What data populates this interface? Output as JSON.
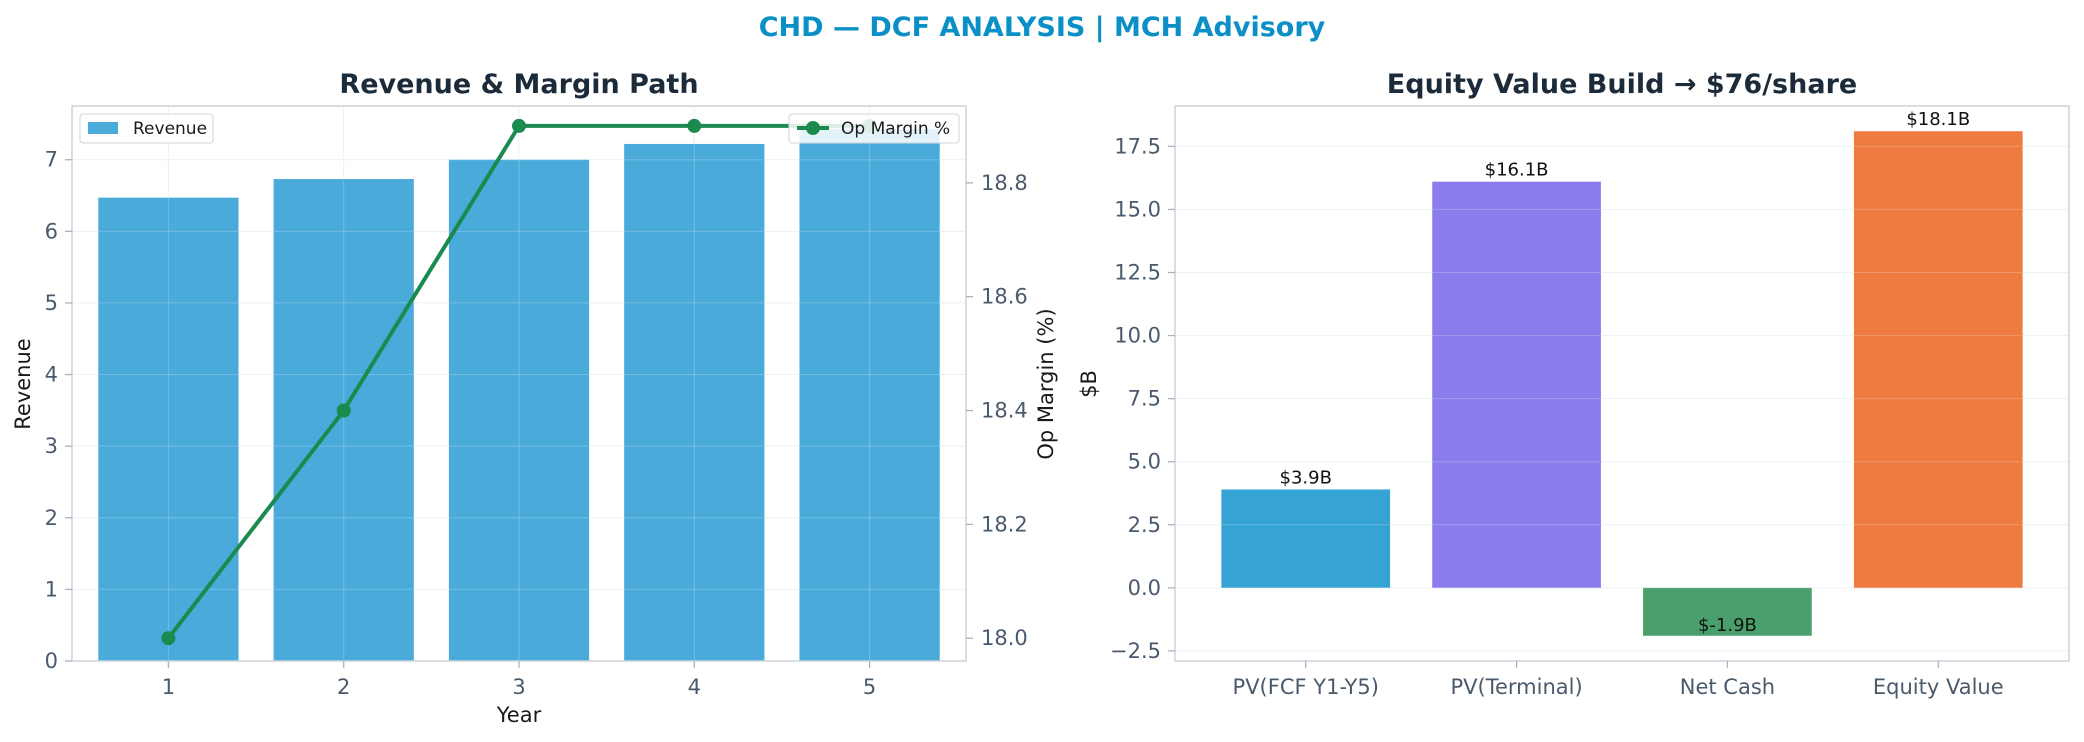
{
  "suptitle": "CHD — DCF ANALYSIS | MCH Advisory",
  "chart_data": [
    {
      "type": "bar",
      "title": "Revenue & Margin Path",
      "xlabel": "Year",
      "ylabel": "Revenue",
      "y2label": "Op Margin (%)",
      "categories": [
        "1",
        "2",
        "3",
        "4",
        "5"
      ],
      "ylim": [
        0,
        7.75
      ],
      "y2lim": [
        17.96,
        18.935
      ],
      "yticks": [
        0,
        1,
        2,
        3,
        4,
        5,
        6,
        7
      ],
      "y2ticks": [
        18.0,
        18.2,
        18.4,
        18.6,
        18.8
      ],
      "grid": true,
      "series": [
        {
          "name": "Revenue",
          "type": "bar",
          "axis": "left",
          "values": [
            6.47,
            6.73,
            7.0,
            7.22,
            7.43
          ]
        },
        {
          "name": "Op Margin %",
          "type": "line",
          "axis": "right",
          "values": [
            18.0,
            18.4,
            18.9,
            18.9,
            18.9
          ]
        }
      ],
      "legend": [
        {
          "name": "Revenue",
          "placement": "top-left"
        },
        {
          "name": "Op Margin %",
          "placement": "top-right"
        }
      ],
      "colors": {
        "bar": "#4aabda",
        "line": "#1a8a4f"
      }
    },
    {
      "type": "bar",
      "title": "Equity Value Build → $76/share",
      "xlabel": "",
      "ylabel": "$B",
      "categories": [
        "PV(FCF Y1-Y5)",
        "PV(Terminal)",
        "Net Cash",
        "Equity Value"
      ],
      "values": [
        3.9,
        16.1,
        -1.9,
        18.1
      ],
      "data_labels": [
        "$3.9B",
        "$16.1B",
        "$-1.9B",
        "$18.1B"
      ],
      "colors": [
        "#35a3d4",
        "#8a7ced",
        "#4aa06c",
        "#ee7b3f"
      ],
      "ylim": [
        -2.9,
        19.1
      ],
      "yticks": [
        -2.5,
        0.0,
        2.5,
        5.0,
        7.5,
        10.0,
        12.5,
        15.0,
        17.5
      ],
      "ytick_labels": [
        "−2.5",
        "0.0",
        "2.5",
        "5.0",
        "7.5",
        "10.0",
        "12.5",
        "15.0",
        "17.5"
      ],
      "grid": true
    }
  ]
}
